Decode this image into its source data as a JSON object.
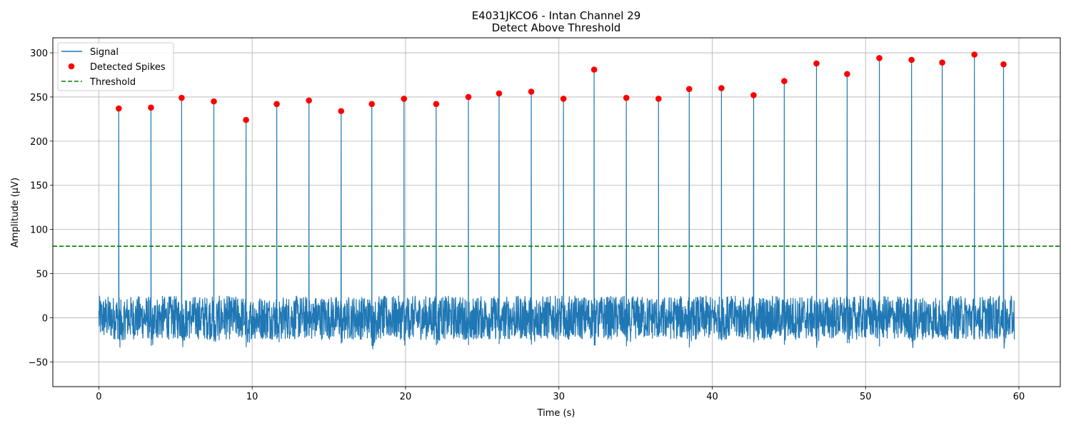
{
  "chart_data": {
    "type": "line",
    "title": "E4031JKCO6 - Intan Channel 29",
    "subtitle": "Detect Above Threshold",
    "xlabel": "Time (s)",
    "ylabel": "Amplitude (µV)",
    "xlim": [
      -3,
      62.7
    ],
    "ylim": [
      -78,
      317
    ],
    "xticks": [
      0,
      10,
      20,
      30,
      40,
      50,
      60
    ],
    "yticks": [
      -50,
      0,
      50,
      100,
      150,
      200,
      250,
      300
    ],
    "grid": true,
    "legend_position": "top-left",
    "signal_duration": [
      0,
      59.7
    ],
    "series": [
      {
        "name": "Signal",
        "kind": "line",
        "color": "#1f77b4",
        "noise_band": [
          -25,
          25
        ],
        "spike_times": [
          1.3,
          3.4,
          5.4,
          7.5,
          9.6,
          11.6,
          13.7,
          15.8,
          17.8,
          19.9,
          22.0,
          24.1,
          26.1,
          28.2,
          30.3,
          32.3,
          34.4,
          36.5,
          38.5,
          40.6,
          42.7,
          44.7,
          46.8,
          48.8,
          50.9,
          53.0,
          55.0,
          57.1,
          59.0
        ]
      },
      {
        "name": "Detected Spikes",
        "kind": "scatter",
        "color": "#ff0000",
        "x": [
          1.3,
          3.4,
          5.4,
          7.5,
          9.6,
          11.6,
          13.7,
          15.8,
          17.8,
          19.9,
          22.0,
          24.1,
          26.1,
          28.2,
          30.3,
          32.3,
          34.4,
          36.5,
          38.5,
          40.6,
          42.7,
          44.7,
          46.8,
          48.8,
          50.9,
          53.0,
          55.0,
          57.1,
          59.0
        ],
        "y": [
          237,
          238,
          249,
          245,
          224,
          242,
          246,
          234,
          242,
          248,
          242,
          250,
          254,
          256,
          248,
          281,
          249,
          248,
          259,
          260,
          252,
          268,
          288,
          276,
          294,
          292,
          289,
          298,
          287
        ]
      },
      {
        "name": "Threshold",
        "kind": "hline",
        "color": "#008000",
        "y": 81
      }
    ]
  }
}
